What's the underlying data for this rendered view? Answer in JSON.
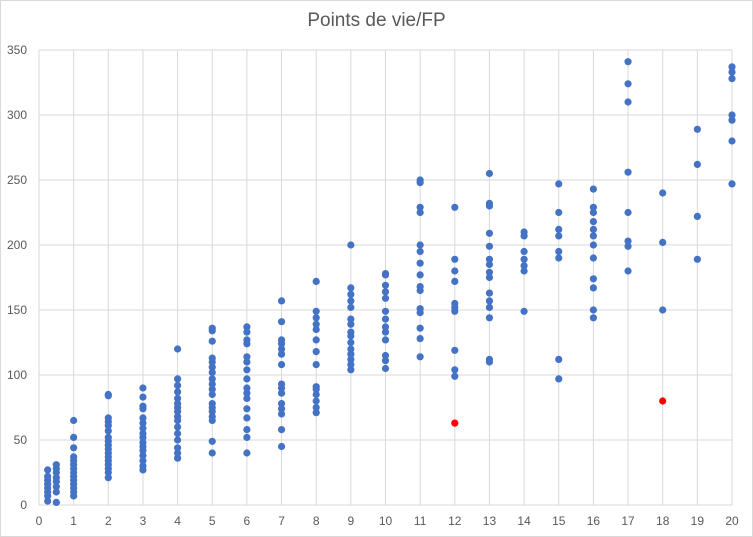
{
  "chart_data": {
    "type": "scatter",
    "title": "Points de vie/FP",
    "xlabel": "",
    "ylabel": "",
    "xlim": [
      0,
      20
    ],
    "ylim": [
      0,
      350
    ],
    "x_ticks": [
      0,
      1,
      2,
      3,
      4,
      5,
      6,
      7,
      8,
      9,
      10,
      11,
      12,
      13,
      14,
      15,
      16,
      17,
      18,
      19,
      20
    ],
    "y_ticks": [
      0,
      50,
      100,
      150,
      200,
      250,
      300,
      350
    ],
    "grid": true,
    "legend": "none",
    "series": [
      {
        "color": "#4472c4",
        "points": [
          [
            0.25,
            3
          ],
          [
            0.25,
            7
          ],
          [
            0.25,
            10
          ],
          [
            0.25,
            13
          ],
          [
            0.25,
            16
          ],
          [
            0.25,
            19
          ],
          [
            0.25,
            22
          ],
          [
            0.25,
            27
          ],
          [
            0.5,
            2
          ],
          [
            0.5,
            10
          ],
          [
            0.5,
            14
          ],
          [
            0.5,
            18
          ],
          [
            0.5,
            21
          ],
          [
            0.5,
            25
          ],
          [
            0.5,
            28
          ],
          [
            0.5,
            31
          ],
          [
            1,
            7
          ],
          [
            1,
            10
          ],
          [
            1,
            13
          ],
          [
            1,
            16
          ],
          [
            1,
            19
          ],
          [
            1,
            22
          ],
          [
            1,
            25
          ],
          [
            1,
            28
          ],
          [
            1,
            31
          ],
          [
            1,
            34
          ],
          [
            1,
            37
          ],
          [
            1,
            44
          ],
          [
            1,
            52
          ],
          [
            1,
            65
          ],
          [
            2,
            21
          ],
          [
            2,
            25
          ],
          [
            2,
            28
          ],
          [
            2,
            31
          ],
          [
            2,
            34
          ],
          [
            2,
            37
          ],
          [
            2,
            40
          ],
          [
            2,
            43
          ],
          [
            2,
            46
          ],
          [
            2,
            49
          ],
          [
            2,
            52
          ],
          [
            2,
            57
          ],
          [
            2,
            61
          ],
          [
            2,
            64
          ],
          [
            2,
            67
          ],
          [
            2,
            84
          ],
          [
            2,
            85
          ],
          [
            3,
            27
          ],
          [
            3,
            30
          ],
          [
            3,
            34
          ],
          [
            3,
            38
          ],
          [
            3,
            42
          ],
          [
            3,
            45
          ],
          [
            3,
            48
          ],
          [
            3,
            52
          ],
          [
            3,
            55
          ],
          [
            3,
            59
          ],
          [
            3,
            63
          ],
          [
            3,
            67
          ],
          [
            3,
            74
          ],
          [
            3,
            76
          ],
          [
            3,
            83
          ],
          [
            3,
            90
          ],
          [
            4,
            36
          ],
          [
            4,
            40
          ],
          [
            4,
            44
          ],
          [
            4,
            50
          ],
          [
            4,
            55
          ],
          [
            4,
            60
          ],
          [
            4,
            65
          ],
          [
            4,
            68
          ],
          [
            4,
            72
          ],
          [
            4,
            75
          ],
          [
            4,
            78
          ],
          [
            4,
            82
          ],
          [
            4,
            87
          ],
          [
            4,
            92
          ],
          [
            4,
            97
          ],
          [
            4,
            120
          ],
          [
            5,
            40
          ],
          [
            5,
            49
          ],
          [
            5,
            65
          ],
          [
            5,
            68
          ],
          [
            5,
            72
          ],
          [
            5,
            75
          ],
          [
            5,
            78
          ],
          [
            5,
            85
          ],
          [
            5,
            89
          ],
          [
            5,
            93
          ],
          [
            5,
            97
          ],
          [
            5,
            102
          ],
          [
            5,
            106
          ],
          [
            5,
            110
          ],
          [
            5,
            113
          ],
          [
            5,
            126
          ],
          [
            5,
            134
          ],
          [
            5,
            136
          ],
          [
            6,
            40
          ],
          [
            6,
            52
          ],
          [
            6,
            58
          ],
          [
            6,
            67
          ],
          [
            6,
            74
          ],
          [
            6,
            82
          ],
          [
            6,
            86
          ],
          [
            6,
            90
          ],
          [
            6,
            97
          ],
          [
            6,
            104
          ],
          [
            6,
            110
          ],
          [
            6,
            114
          ],
          [
            6,
            124
          ],
          [
            6,
            127
          ],
          [
            6,
            133
          ],
          [
            6,
            137
          ],
          [
            7,
            45
          ],
          [
            7,
            58
          ],
          [
            7,
            70
          ],
          [
            7,
            74
          ],
          [
            7,
            78
          ],
          [
            7,
            86
          ],
          [
            7,
            90
          ],
          [
            7,
            93
          ],
          [
            7,
            108
          ],
          [
            7,
            116
          ],
          [
            7,
            120
          ],
          [
            7,
            124
          ],
          [
            7,
            127
          ],
          [
            7,
            141
          ],
          [
            7,
            157
          ],
          [
            8,
            71
          ],
          [
            8,
            75
          ],
          [
            8,
            80
          ],
          [
            8,
            85
          ],
          [
            8,
            89
          ],
          [
            8,
            91
          ],
          [
            8,
            108
          ],
          [
            8,
            118
          ],
          [
            8,
            127
          ],
          [
            8,
            135
          ],
          [
            8,
            139
          ],
          [
            8,
            144
          ],
          [
            8,
            149
          ],
          [
            8,
            172
          ],
          [
            9,
            104
          ],
          [
            9,
            108
          ],
          [
            9,
            112
          ],
          [
            9,
            116
          ],
          [
            9,
            120
          ],
          [
            9,
            125
          ],
          [
            9,
            130
          ],
          [
            9,
            133
          ],
          [
            9,
            139
          ],
          [
            9,
            143
          ],
          [
            9,
            152
          ],
          [
            9,
            157
          ],
          [
            9,
            162
          ],
          [
            9,
            167
          ],
          [
            9,
            200
          ],
          [
            10,
            105
          ],
          [
            10,
            111
          ],
          [
            10,
            115
          ],
          [
            10,
            127
          ],
          [
            10,
            133
          ],
          [
            10,
            137
          ],
          [
            10,
            143
          ],
          [
            10,
            149
          ],
          [
            10,
            159
          ],
          [
            10,
            164
          ],
          [
            10,
            169
          ],
          [
            10,
            177
          ],
          [
            10,
            178
          ],
          [
            11,
            114
          ],
          [
            11,
            128
          ],
          [
            11,
            136
          ],
          [
            11,
            148
          ],
          [
            11,
            151
          ],
          [
            11,
            165
          ],
          [
            11,
            168
          ],
          [
            11,
            177
          ],
          [
            11,
            186
          ],
          [
            11,
            195
          ],
          [
            11,
            200
          ],
          [
            11,
            225
          ],
          [
            11,
            229
          ],
          [
            11,
            248
          ],
          [
            11,
            250
          ],
          [
            12,
            99
          ],
          [
            12,
            104
          ],
          [
            12,
            119
          ],
          [
            12,
            149
          ],
          [
            12,
            152
          ],
          [
            12,
            155
          ],
          [
            12,
            172
          ],
          [
            12,
            180
          ],
          [
            12,
            189
          ],
          [
            12,
            229
          ],
          [
            13,
            110
          ],
          [
            13,
            112
          ],
          [
            13,
            144
          ],
          [
            13,
            152
          ],
          [
            13,
            157
          ],
          [
            13,
            163
          ],
          [
            13,
            175
          ],
          [
            13,
            179
          ],
          [
            13,
            185
          ],
          [
            13,
            189
          ],
          [
            13,
            199
          ],
          [
            13,
            209
          ],
          [
            13,
            230
          ],
          [
            13,
            232
          ],
          [
            13,
            255
          ],
          [
            14,
            149
          ],
          [
            14,
            180
          ],
          [
            14,
            184
          ],
          [
            14,
            189
          ],
          [
            14,
            195
          ],
          [
            14,
            207
          ],
          [
            14,
            210
          ],
          [
            15,
            97
          ],
          [
            15,
            112
          ],
          [
            15,
            190
          ],
          [
            15,
            195
          ],
          [
            15,
            207
          ],
          [
            15,
            212
          ],
          [
            15,
            225
          ],
          [
            15,
            247
          ],
          [
            16,
            144
          ],
          [
            16,
            150
          ],
          [
            16,
            167
          ],
          [
            16,
            174
          ],
          [
            16,
            190
          ],
          [
            16,
            200
          ],
          [
            16,
            207
          ],
          [
            16,
            212
          ],
          [
            16,
            218
          ],
          [
            16,
            225
          ],
          [
            16,
            229
          ],
          [
            16,
            243
          ],
          [
            17,
            180
          ],
          [
            17,
            199
          ],
          [
            17,
            203
          ],
          [
            17,
            225
          ],
          [
            17,
            256
          ],
          [
            17,
            310
          ],
          [
            17,
            324
          ],
          [
            17,
            341
          ],
          [
            18,
            150
          ],
          [
            18,
            202
          ],
          [
            18,
            240
          ],
          [
            19,
            189
          ],
          [
            19,
            222
          ],
          [
            19,
            262
          ],
          [
            19,
            289
          ],
          [
            20,
            247
          ],
          [
            20,
            280
          ],
          [
            20,
            296
          ],
          [
            20,
            300
          ],
          [
            20,
            328
          ],
          [
            20,
            333
          ],
          [
            20,
            337
          ]
        ]
      },
      {
        "color": "#ff0000",
        "points": [
          [
            12,
            63
          ],
          [
            18,
            80
          ]
        ]
      }
    ]
  }
}
